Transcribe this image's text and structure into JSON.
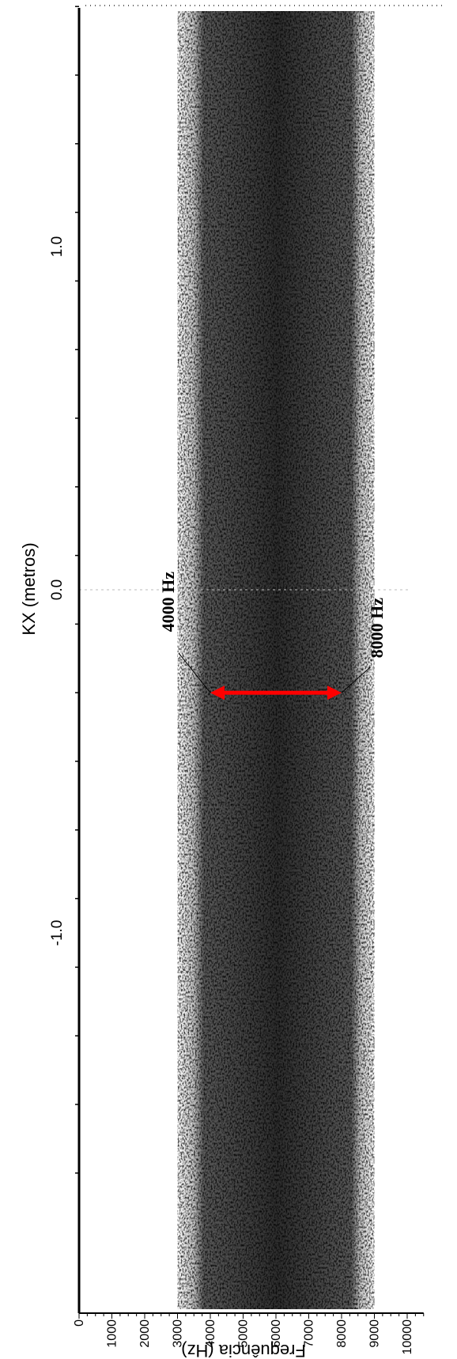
{
  "chart_data": {
    "type": "heatmap",
    "orientation": "rotated-90",
    "xlabel": "Frequência (Hz)",
    "ylabel": "KX (metros)",
    "x_ticks": [
      0,
      1000,
      2000,
      3000,
      4000,
      5000,
      6000,
      7000,
      8000,
      9000,
      10000
    ],
    "x_tick_labels": [
      "0",
      "1000",
      "2000",
      "3000",
      "4000",
      "5000",
      "6000",
      "7000",
      "8000",
      "9000",
      "10000"
    ],
    "xlim": [
      0,
      10500
    ],
    "y_ticks": [
      1.0,
      0.0,
      -1.0
    ],
    "y_tick_labels": [
      "1.0",
      "0.0",
      "-1.0"
    ],
    "ylim": [
      -1.7,
      1.7
    ],
    "band": {
      "start_hz": 3000,
      "end_hz": 9000,
      "peak_start_hz": 3800,
      "peak_end_hz": 8300
    },
    "colormap": "white-to-black",
    "annotations": [
      {
        "text": "4000 Hz",
        "x": 4000,
        "y": -0.3
      },
      {
        "text": "8000 Hz",
        "x": 8000,
        "y": -0.3
      }
    ],
    "arrow": {
      "from_x": 4000,
      "to_x": 8000,
      "y": -0.3,
      "color": "#ff0000"
    }
  }
}
